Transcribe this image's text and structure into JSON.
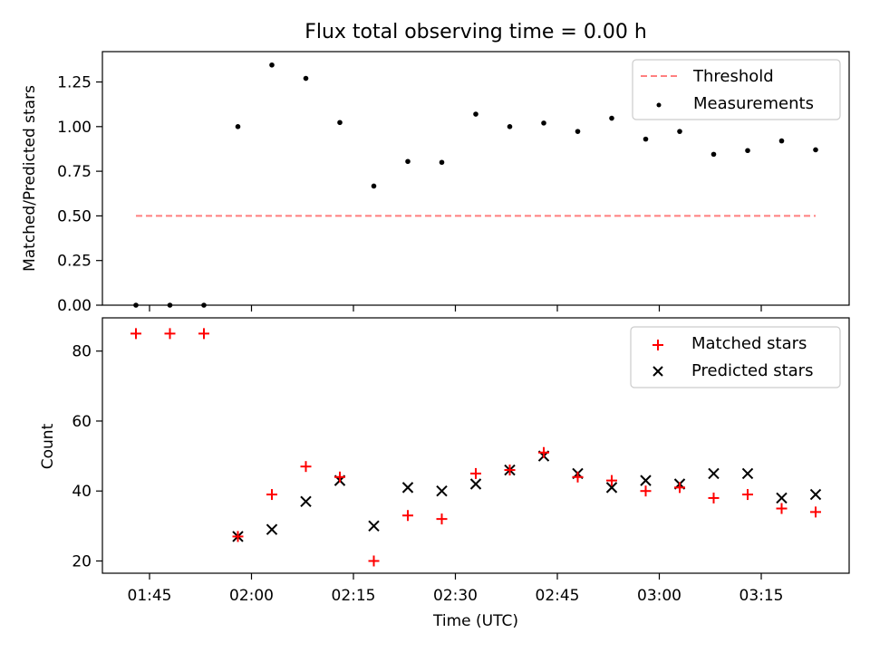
{
  "chart_data": [
    {
      "type": "scatter",
      "title": "Flux total observing time = 0.00 h",
      "xlabel": "",
      "ylabel": "Matched/Predicted stars",
      "ylim": [
        0,
        1.42
      ],
      "yticks": [
        "0.00",
        "0.25",
        "0.50",
        "0.75",
        "1.00",
        "1.25"
      ],
      "legend": "top-right",
      "x": [
        "01:43",
        "01:48",
        "01:53",
        "01:58",
        "02:03",
        "02:08",
        "02:13",
        "02:18",
        "02:23",
        "02:28",
        "02:33",
        "02:38",
        "02:43",
        "02:48",
        "02:53",
        "02:58",
        "03:03",
        "03:08",
        "03:13",
        "03:18",
        "03:23"
      ],
      "series": [
        {
          "name": "Threshold",
          "kind": "dashed-line",
          "color": "#ff7f7f",
          "x": [
            "01:43",
            "03:23"
          ],
          "values": [
            0.5,
            0.5
          ]
        },
        {
          "name": "Measurements",
          "kind": "dot",
          "color": "#000000",
          "values": [
            0,
            0,
            0,
            1.0,
            1.345,
            1.27,
            1.023,
            0.667,
            0.805,
            0.8,
            1.07,
            1.0,
            1.02,
            0.973,
            1.047,
            0.93,
            0.973,
            0.845,
            0.866,
            0.92,
            0.87
          ]
        }
      ]
    },
    {
      "type": "scatter",
      "title": "",
      "xlabel": "Time (UTC)",
      "ylabel": "Count",
      "ylim": [
        16.5,
        89.5
      ],
      "yticks": [
        "20",
        "40",
        "60",
        "80"
      ],
      "xticks": [
        "01:45",
        "02:00",
        "02:15",
        "02:30",
        "02:45",
        "03:00",
        "03:15"
      ],
      "legend": "top-right",
      "x": [
        "01:43",
        "01:48",
        "01:53",
        "01:58",
        "02:03",
        "02:08",
        "02:13",
        "02:18",
        "02:23",
        "02:28",
        "02:33",
        "02:38",
        "02:43",
        "02:48",
        "02:53",
        "02:58",
        "03:03",
        "03:08",
        "03:13",
        "03:18",
        "03:23"
      ],
      "series": [
        {
          "name": "Matched stars",
          "marker": "plus",
          "color": "#ff0000",
          "values": [
            85,
            85,
            85,
            27,
            39,
            47,
            44,
            20,
            33,
            32,
            45,
            46,
            51,
            44,
            43,
            40,
            41,
            38,
            39,
            35,
            34
          ]
        },
        {
          "name": "Predicted stars",
          "marker": "x",
          "color": "#000000",
          "values": [
            null,
            null,
            null,
            27,
            29,
            37,
            43,
            30,
            41,
            40,
            42,
            46,
            50,
            45,
            41,
            43,
            42,
            45,
            45,
            38,
            39
          ]
        }
      ]
    }
  ]
}
